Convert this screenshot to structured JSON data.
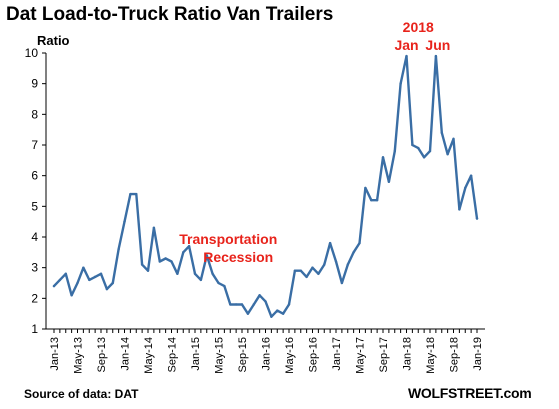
{
  "header": {
    "title": "Dat Load-to-Truck Ratio Van Trailers",
    "y_unit_label": "Ratio"
  },
  "footer": {
    "source": "Source of data: DAT",
    "brand": "WOLFSTREET.com"
  },
  "colors": {
    "line": "#3a6ea5",
    "annotation": "#e8231b",
    "axis": "#000000"
  },
  "chart_data": {
    "type": "line",
    "title": "Dat Load-to-Truck Ratio Van Trailers",
    "ylabel": "Ratio",
    "xlabel": "",
    "ylim": [
      1,
      10
    ],
    "y_ticks": [
      1,
      2,
      3,
      4,
      5,
      6,
      7,
      8,
      9,
      10
    ],
    "x_tick_labels": [
      "Jan-13",
      "May-13",
      "Sep-13",
      "Jan-14",
      "May-14",
      "Sep-14",
      "Jan-15",
      "May-15",
      "Sep-15",
      "Jan-16",
      "May-16",
      "Sep-16",
      "Jan-17",
      "May-17",
      "Sep-17",
      "Jan-18",
      "May-18",
      "Sep-18",
      "Jan-19"
    ],
    "grid": false,
    "series": [
      {
        "x": [
          "Jan-13",
          "Feb-13",
          "Mar-13",
          "Apr-13",
          "May-13",
          "Jun-13",
          "Jul-13",
          "Aug-13",
          "Sep-13",
          "Oct-13",
          "Nov-13",
          "Dec-13",
          "Jan-14",
          "Feb-14",
          "Mar-14",
          "Apr-14",
          "May-14",
          "Jun-14",
          "Jul-14",
          "Aug-14",
          "Sep-14",
          "Oct-14",
          "Nov-14",
          "Dec-14",
          "Jan-15",
          "Feb-15",
          "Mar-15",
          "Apr-15",
          "May-15",
          "Jun-15",
          "Jul-15",
          "Aug-15",
          "Sep-15",
          "Oct-15",
          "Nov-15",
          "Dec-15",
          "Jan-16",
          "Feb-16",
          "Mar-16",
          "Apr-16",
          "May-16",
          "Jun-16",
          "Jul-16",
          "Aug-16",
          "Sep-16",
          "Oct-16",
          "Nov-16",
          "Dec-16",
          "Jan-17",
          "Feb-17",
          "Mar-17",
          "Apr-17",
          "May-17",
          "Jun-17",
          "Jul-17",
          "Aug-17",
          "Sep-17",
          "Oct-17",
          "Nov-17",
          "Dec-17",
          "Jan-18",
          "Feb-18",
          "Mar-18",
          "Apr-18",
          "May-18",
          "Jun-18",
          "Jul-18",
          "Aug-18",
          "Sep-18",
          "Oct-18",
          "Nov-18",
          "Dec-18",
          "Jan-19"
        ],
        "values": [
          2.4,
          2.6,
          2.8,
          2.1,
          2.5,
          3.0,
          2.6,
          2.7,
          2.8,
          2.3,
          2.5,
          3.6,
          4.5,
          5.4,
          5.4,
          3.1,
          2.9,
          4.3,
          3.2,
          3.3,
          3.2,
          2.8,
          3.5,
          3.7,
          2.8,
          2.6,
          3.4,
          2.8,
          2.5,
          2.4,
          1.8,
          1.8,
          1.8,
          1.5,
          1.8,
          2.1,
          1.9,
          1.4,
          1.6,
          1.5,
          1.8,
          2.9,
          2.9,
          2.7,
          3.0,
          2.8,
          3.1,
          3.8,
          3.2,
          2.5,
          3.1,
          3.5,
          3.8,
          5.6,
          5.2,
          5.2,
          6.6,
          5.8,
          6.8,
          9.0,
          9.9,
          7.0,
          6.9,
          6.6,
          6.8,
          9.9,
          7.4,
          6.7,
          7.2,
          4.9,
          5.6,
          6.0,
          4.6
        ]
      }
    ],
    "annotations": [
      {
        "text": "2018",
        "anchor": "Mar-18"
      },
      {
        "text": "Jan",
        "anchor": "Jan-18"
      },
      {
        "text": "Jun",
        "anchor": "Jun-18"
      },
      {
        "text": "Transportation",
        "anchor": "Mar-16"
      },
      {
        "text": "Recession",
        "anchor": "Mar-16"
      }
    ]
  }
}
